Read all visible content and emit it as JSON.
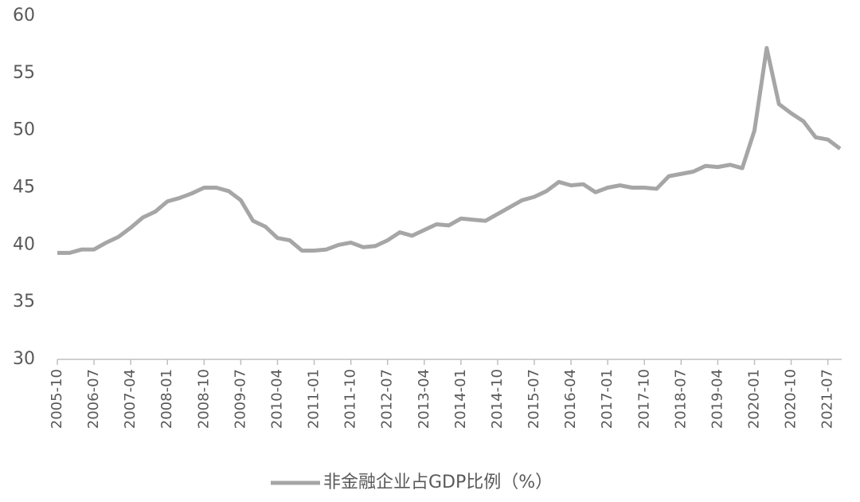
{
  "chart_data": {
    "type": "line",
    "categories": [
      "2005-10",
      null,
      null,
      "2006-07",
      null,
      null,
      "2007-04",
      null,
      null,
      "2008-01",
      null,
      null,
      "2008-10",
      null,
      null,
      "2009-07",
      null,
      null,
      "2010-04",
      null,
      null,
      "2011-01",
      null,
      null,
      "2011-10",
      null,
      null,
      "2012-07",
      null,
      null,
      "2013-04",
      null,
      null,
      "2014-01",
      null,
      null,
      "2014-10",
      null,
      null,
      "2015-07",
      null,
      null,
      "2016-04",
      null,
      null,
      "2017-01",
      null,
      null,
      "2017-10",
      null,
      null,
      "2018-07",
      null,
      null,
      "2019-04",
      null,
      null,
      "2020-01",
      null,
      null,
      "2020-10",
      null,
      null,
      "2021-07",
      null
    ],
    "series": [
      {
        "name": "非金融企业占GDP比例（%）",
        "color": "#a6a6a6",
        "values": [
          39.3,
          39.3,
          39.6,
          39.6,
          40.2,
          40.7,
          41.5,
          42.4,
          42.9,
          43.8,
          44.1,
          44.5,
          45.0,
          45.0,
          44.7,
          43.9,
          42.1,
          41.6,
          40.6,
          40.4,
          39.5,
          39.5,
          39.6,
          40.0,
          40.2,
          39.8,
          39.9,
          40.4,
          41.1,
          40.8,
          41.3,
          41.8,
          41.7,
          42.3,
          42.2,
          42.1,
          42.7,
          43.3,
          43.9,
          44.2,
          44.7,
          45.5,
          45.2,
          45.3,
          44.6,
          45.0,
          45.2,
          45.0,
          45.0,
          44.9,
          46.0,
          46.2,
          46.4,
          46.9,
          46.8,
          47.0,
          46.7,
          50.0,
          57.2,
          52.3,
          51.5,
          50.8,
          49.4,
          49.2,
          48.4
        ]
      }
    ],
    "ylim": [
      30,
      60
    ],
    "yticks": [
      30,
      35,
      40,
      45,
      50,
      55,
      60
    ],
    "grid": false,
    "legend": "bottom"
  }
}
